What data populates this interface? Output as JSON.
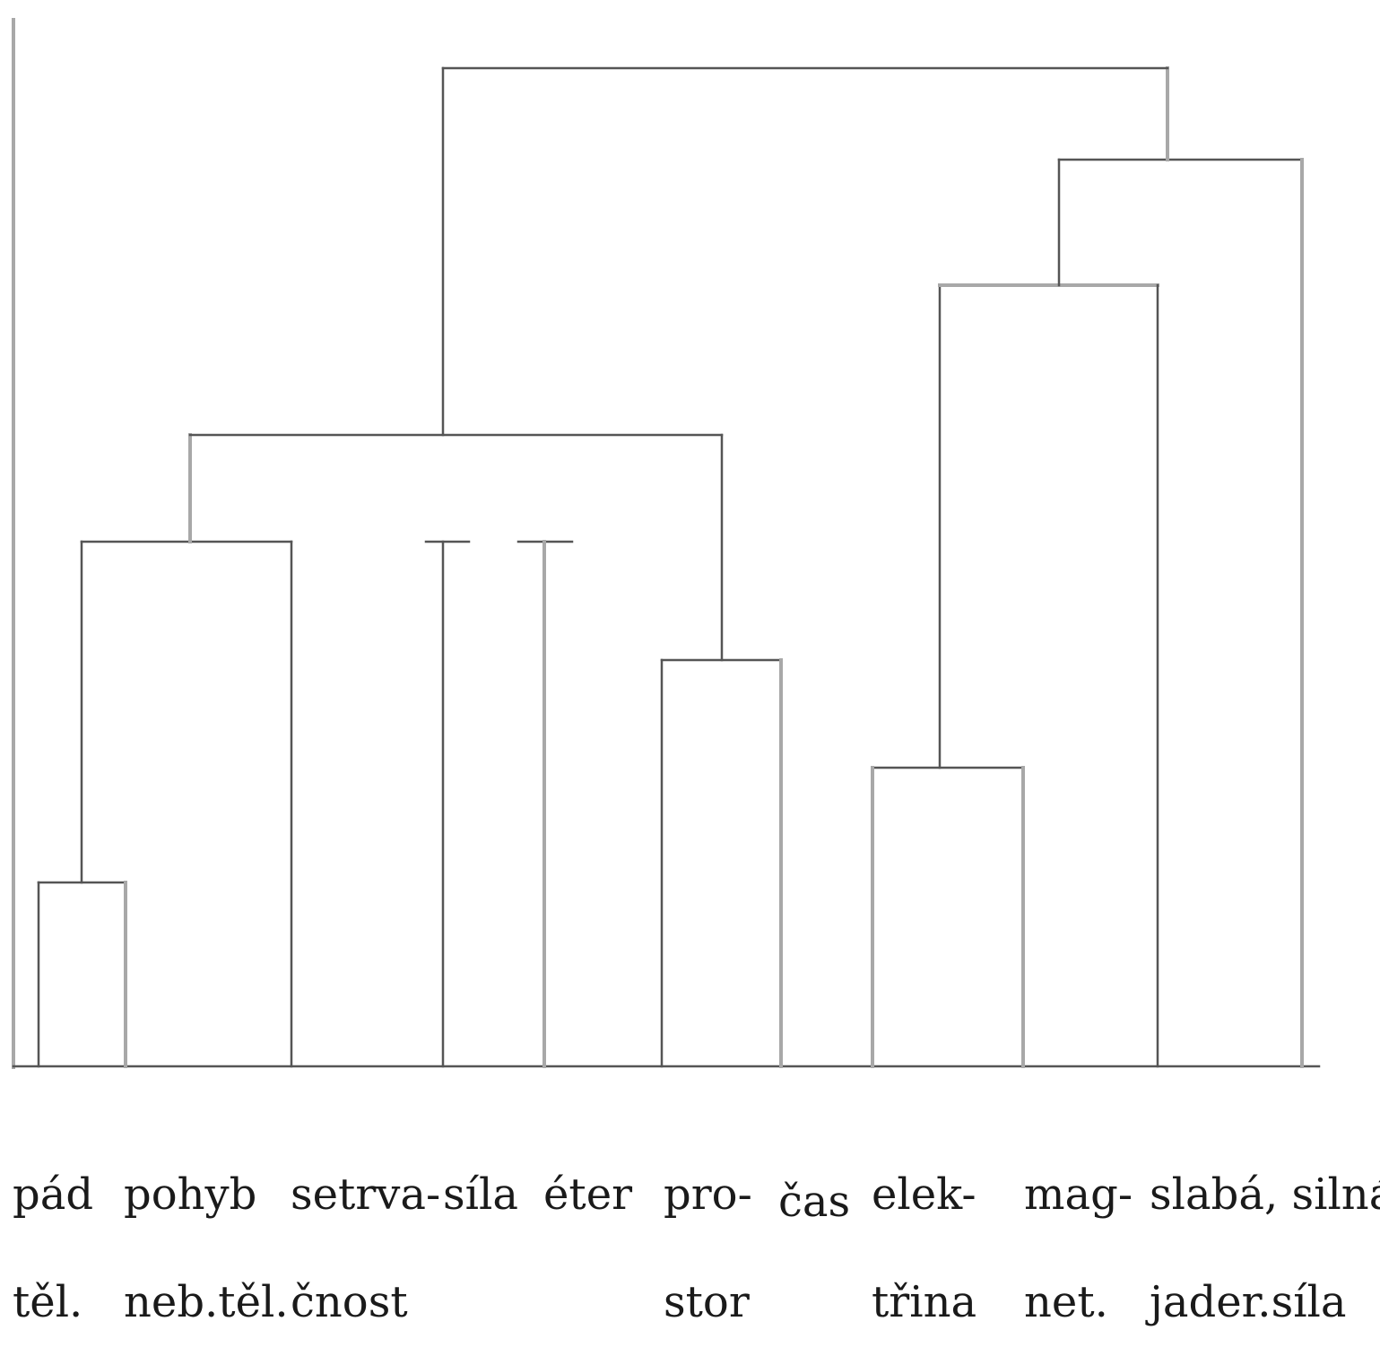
{
  "leaves": [
    {
      "id": "pad",
      "lines": [
        "pád",
        "těl."
      ]
    },
    {
      "id": "pohyb",
      "lines": [
        "pohyb",
        "neb.těl."
      ]
    },
    {
      "id": "setrvacnost",
      "lines": [
        "setrva-",
        "čnost"
      ]
    },
    {
      "id": "sila",
      "lines": [
        "síla"
      ]
    },
    {
      "id": "eter",
      "lines": [
        "éter"
      ]
    },
    {
      "id": "prostor",
      "lines": [
        "pro-",
        "stor"
      ]
    },
    {
      "id": "cas",
      "lines": [
        "čas"
      ]
    },
    {
      "id": "elektrina",
      "lines": [
        "elek-",
        "třina"
      ]
    },
    {
      "id": "magnet",
      "lines": [
        "mag-",
        "net."
      ]
    },
    {
      "id": "slaba-silna",
      "lines": [
        "slabá, silná",
        "jader.síla"
      ]
    }
  ],
  "colors": {
    "dark": "#555555",
    "light": "#a8a8a8",
    "text": "#1a1a1a"
  }
}
